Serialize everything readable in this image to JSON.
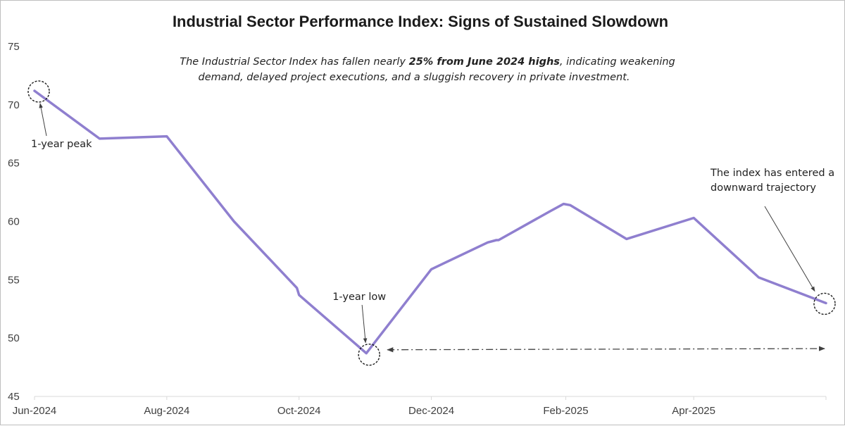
{
  "chart_data": {
    "type": "line",
    "title": "Industrial Sector Performance Index: Signs of Sustained Slowdown",
    "subtitle": {
      "line1_prefix": "The Industrial Sector Index has fallen nearly ",
      "line1_bold": "25% from June 2024 highs",
      "line1_suffix": ", indicating weakening",
      "line2": "demand, delayed project executions, and a sluggish recovery in private investment."
    },
    "xlabel": "",
    "ylabel": "",
    "ylim": [
      45,
      75
    ],
    "yticks": [
      "45",
      "50",
      "55",
      "60",
      "65",
      "70",
      "75"
    ],
    "xticks": [
      "Jun-2024",
      "Aug-2024",
      "Oct-2024",
      "Dec-2024",
      "Feb-2025",
      "Apr-2025"
    ],
    "xlim": [
      "2024-06-01",
      "2025-06-01"
    ],
    "series": [
      {
        "color": "#8f7fcf",
        "points": [
          {
            "x": "2024-06-01",
            "y": 71.2
          },
          {
            "x": "2024-07-01",
            "y": 67.1
          },
          {
            "x": "2024-08-01",
            "y": 67.3
          },
          {
            "x": "2024-09-01",
            "y": 60.0
          },
          {
            "x": "2024-09-30",
            "y": 54.3
          },
          {
            "x": "2024-10-01",
            "y": 53.7
          },
          {
            "x": "2024-11-01",
            "y": 48.7
          },
          {
            "x": "2024-12-01",
            "y": 55.9
          },
          {
            "x": "2024-12-27",
            "y": 58.2
          },
          {
            "x": "2024-12-31",
            "y": 58.4
          },
          {
            "x": "2025-01-01",
            "y": 58.4
          },
          {
            "x": "2025-01-25",
            "y": 60.9
          },
          {
            "x": "2025-01-31",
            "y": 61.5
          },
          {
            "x": "2025-02-03",
            "y": 61.4
          },
          {
            "x": "2025-03-01",
            "y": 58.5
          },
          {
            "x": "2025-04-01",
            "y": 60.3
          },
          {
            "x": "2025-05-01",
            "y": 55.2
          },
          {
            "x": "2025-06-01",
            "y": 53.0
          }
        ]
      }
    ],
    "annotations": {
      "peak": {
        "text": "1-year peak",
        "x": "2024-06-01",
        "y": 71.2
      },
      "low": {
        "text": "1-year low",
        "x": "2024-11-01",
        "y": 48.7
      },
      "trend_lines": [
        "The index has entered a",
        "downward trajectory"
      ],
      "trend_point": {
        "x": "2025-06-01",
        "y": 53.0
      },
      "reference_line": {
        "y": 49.0,
        "from": "2024-11-01",
        "to": "2025-06-01",
        "y_end": 49.1
      }
    },
    "colors": {
      "line": "#8f7fcf",
      "annotation": "#404040",
      "axis": "#d9d9d9"
    },
    "grid": false,
    "legend": "none"
  }
}
